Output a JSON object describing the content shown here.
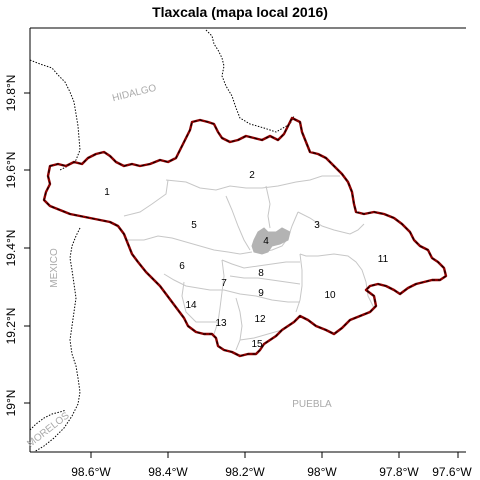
{
  "title": "Tlaxcala (mapa local 2016)",
  "axes": {
    "x_ticks": [
      "98.6°W",
      "98.4°W",
      "98.2°W",
      "98°W",
      "97.8°W",
      "97.6°W"
    ],
    "y_ticks": [
      "19.8°N",
      "19.6°N",
      "19.4°N",
      "19.2°N",
      "19°N"
    ]
  },
  "states": {
    "hidalgo": "HIDALGO",
    "mexico": "MEXICO",
    "puebla": "PUEBLA",
    "morelos": "MORELOS"
  },
  "districts": [
    "1",
    "2",
    "3",
    "4",
    "5",
    "6",
    "7",
    "8",
    "9",
    "10",
    "11",
    "12",
    "13",
    "14",
    "15"
  ],
  "colors": {
    "outer_border": "#8b0000",
    "district_lines": "#c7c7c7",
    "highlight": "#b3b3b3",
    "state_labels": "#a9a9a9"
  }
}
